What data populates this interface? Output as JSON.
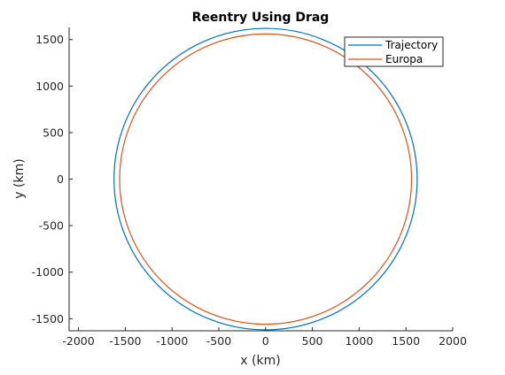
{
  "chart_data": {
    "type": "line",
    "title": "Reentry Using Drag",
    "xlabel": "x (km)",
    "ylabel": "y (km)",
    "xlim": [
      -2100,
      2000
    ],
    "ylim": [
      -1630,
      1630
    ],
    "xticks": [
      -2000,
      -1500,
      -1000,
      -500,
      0,
      500,
      1000,
      1500,
      2000
    ],
    "yticks": [
      -1500,
      -1000,
      -500,
      0,
      500,
      1000,
      1500
    ],
    "grid": false,
    "legend_position": "top-right",
    "series": [
      {
        "name": "Trajectory",
        "shape": "circle",
        "center": [
          0,
          0
        ],
        "radius": 1620,
        "color": "#0072BD"
      },
      {
        "name": "Europa",
        "shape": "circle",
        "center": [
          0,
          0
        ],
        "radius": 1560,
        "color": "#D95319"
      }
    ]
  }
}
